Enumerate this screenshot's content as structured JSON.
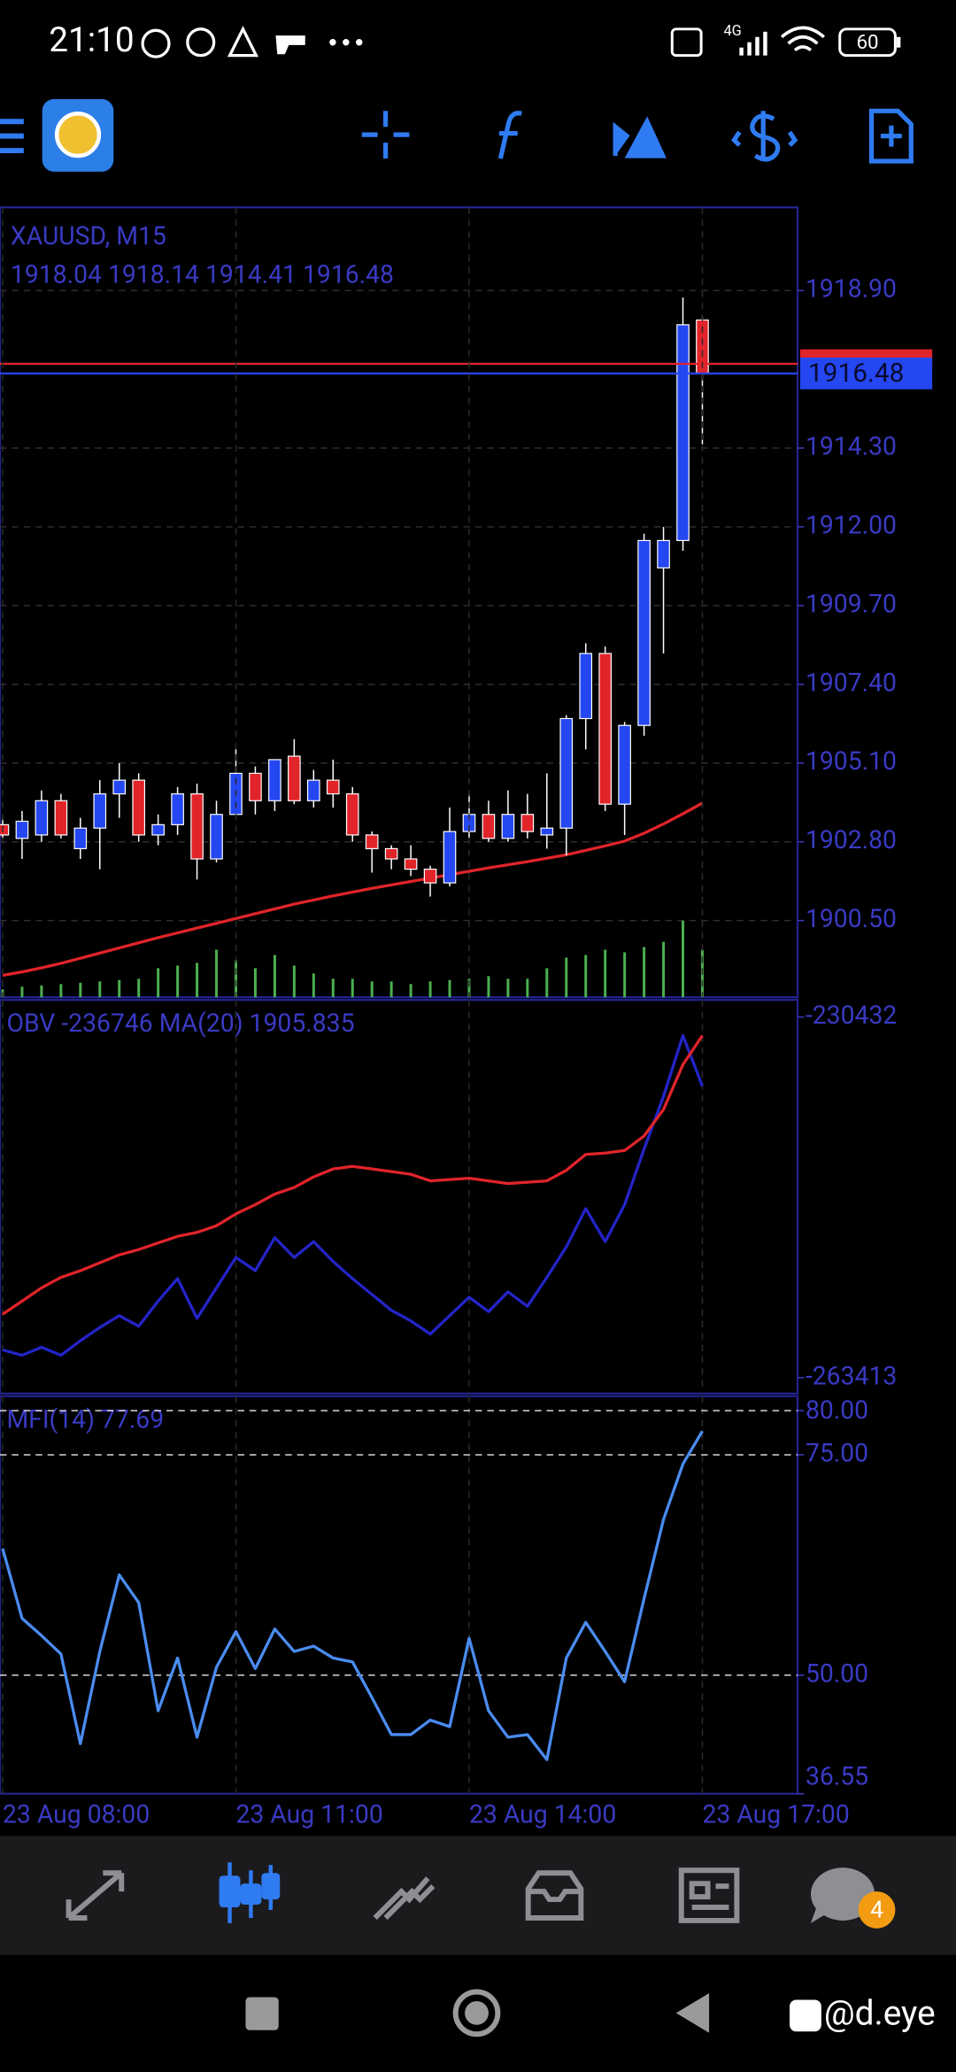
{
  "status_bar": {
    "time": "21:10",
    "network": "4G",
    "battery": "60"
  },
  "chart_data": [
    {
      "type": "candlestick",
      "title": "XAUUSD, M15",
      "subtitle": "1918.04 1918.14 1914.41 1916.48",
      "x": [
        "23 Aug 08:00",
        null,
        null,
        null,
        null,
        null,
        null,
        null,
        null,
        null,
        null,
        null,
        "23 Aug 11:00",
        null,
        null,
        null,
        null,
        null,
        null,
        null,
        null,
        null,
        null,
        null,
        "23 Aug 14:00",
        null,
        null,
        null,
        null,
        null,
        null,
        null,
        null,
        null,
        null,
        null,
        "23 Aug 17:00"
      ],
      "open": [
        1903.3,
        1902.9,
        1903.0,
        1904.0,
        1902.6,
        1903.2,
        1904.2,
        1904.6,
        1903.0,
        1903.3,
        1904.2,
        1902.3,
        1903.6,
        1904.8,
        1904.0,
        1905.3,
        1904.0,
        1904.6,
        1904.2,
        1903.0,
        1902.6,
        1902.3,
        1902.0,
        1901.6,
        1903.1,
        1903.6,
        1902.9,
        1903.6,
        1903.0,
        1903.2,
        1906.4,
        1908.3,
        1903.9,
        1906.2,
        1910.8,
        1911.6,
        1918.04
      ],
      "high": [
        1903.5,
        1903.7,
        1904.3,
        1904.2,
        1903.5,
        1904.6,
        1905.1,
        1904.8,
        1903.6,
        1904.4,
        1904.5,
        1904.0,
        1905.5,
        1905.0,
        1905.2,
        1905.8,
        1904.9,
        1905.2,
        1904.4,
        1903.1,
        1902.7,
        1902.7,
        1902.1,
        1903.8,
        1904.2,
        1904.0,
        1904.3,
        1904.2,
        1904.8,
        1906.5,
        1908.6,
        1908.5,
        1906.3,
        1911.8,
        1912.0,
        1918.7,
        1918.14
      ],
      "low": [
        1902.9,
        1902.3,
        1902.8,
        1902.9,
        1902.3,
        1902.0,
        1903.5,
        1902.8,
        1902.7,
        1903.0,
        1901.7,
        1902.2,
        1903.6,
        1903.6,
        1903.7,
        1903.9,
        1903.8,
        1903.8,
        1902.8,
        1901.9,
        1902.0,
        1901.8,
        1901.2,
        1901.5,
        1902.9,
        1902.8,
        1902.8,
        1902.9,
        1902.6,
        1902.4,
        1905.5,
        1903.7,
        1903.0,
        1905.9,
        1908.3,
        1911.3,
        1914.41
      ],
      "close": [
        1903.0,
        1903.4,
        1904.0,
        1903.0,
        1903.2,
        1904.2,
        1904.6,
        1903.0,
        1903.3,
        1904.2,
        1902.3,
        1903.6,
        1904.8,
        1904.0,
        1905.2,
        1904.0,
        1904.6,
        1904.2,
        1903.0,
        1902.6,
        1902.3,
        1902.0,
        1901.6,
        1903.1,
        1903.6,
        1902.9,
        1903.6,
        1903.1,
        1903.2,
        1906.4,
        1908.3,
        1903.9,
        1906.2,
        1911.6,
        1911.6,
        1917.9,
        1916.48
      ],
      "colors": {
        "up": "#2447f2",
        "down": "#e0242a",
        "wick": "#ffffff"
      },
      "moving_average": {
        "color": "#e0242a",
        "values": [
          1898.9,
          1899.0,
          1899.12,
          1899.25,
          1899.4,
          1899.55,
          1899.7,
          1899.85,
          1900.0,
          1900.14,
          1900.28,
          1900.42,
          1900.56,
          1900.7,
          1900.84,
          1900.98,
          1901.1,
          1901.22,
          1901.33,
          1901.44,
          1901.54,
          1901.64,
          1901.74,
          1901.84,
          1901.94,
          1902.04,
          1902.13,
          1902.22,
          1902.32,
          1902.42,
          1902.55,
          1902.68,
          1902.82,
          1903.05,
          1903.32,
          1903.62,
          1903.93
        ]
      },
      "volume": {
        "color": "#4caf50",
        "values": [
          6,
          8,
          9,
          10,
          11,
          12,
          13,
          14,
          22,
          24,
          26,
          36,
          28,
          22,
          32,
          24,
          18,
          14,
          14,
          12,
          12,
          10,
          12,
          13,
          14,
          16,
          14,
          14,
          22,
          30,
          32,
          36,
          34,
          38,
          42,
          58,
          36
        ]
      },
      "ask_line": {
        "value": 1916.76,
        "color": "#e0242a"
      },
      "ylim": [
        1898.26,
        1921.33
      ],
      "yticks": [
        {
          "value": 1918.9,
          "label": "1918.90"
        },
        {
          "value": 1914.3,
          "label": "1914.30"
        },
        {
          "value": 1912.0,
          "label": "1912.00"
        },
        {
          "value": 1909.7,
          "label": "1909.70"
        },
        {
          "value": 1907.4,
          "label": "1907.40"
        },
        {
          "value": 1905.1,
          "label": "1905.10"
        },
        {
          "value": 1902.8,
          "label": "1902.80"
        },
        {
          "value": 1900.5,
          "label": "1900.50"
        }
      ],
      "grid": true
    },
    {
      "type": "line",
      "title": "OBV -236746 MA(20) 1905.835",
      "series": [
        {
          "color": "#2424c8",
          "values": [
            -260879,
            -261362,
            -260637,
            -261362,
            -260033,
            -258825,
            -257737,
            -258704,
            -256408,
            -254354,
            -257979,
            -255200,
            -252421,
            -253629,
            -250609,
            -252421,
            -250971,
            -252784,
            -254354,
            -255804,
            -257254,
            -258221,
            -259429,
            -257737,
            -256046,
            -257375,
            -255563,
            -256892,
            -254234,
            -251455,
            -247951,
            -250971,
            -247588,
            -242514,
            -237681,
            -232123,
            -236746
          ]
        },
        {
          "color": "#e0242a",
          "values": [
            -257617,
            -256408,
            -255200,
            -254234,
            -253629,
            -252905,
            -252180,
            -251696,
            -251092,
            -250488,
            -250126,
            -249522,
            -248434,
            -247588,
            -246622,
            -246018,
            -245051,
            -244326,
            -244085,
            -244326,
            -244568,
            -244810,
            -245414,
            -245293,
            -245172,
            -245414,
            -245655,
            -245534,
            -245414,
            -244447,
            -242997,
            -242876,
            -242635,
            -241306,
            -238889,
            -234782,
            -232123
          ]
        }
      ],
      "ylim": [
        -264863,
        -228861
      ],
      "yticks": [
        -263413,
        -230432
      ]
    },
    {
      "type": "line",
      "title": "MFI(14) 77.69",
      "series": [
        {
          "color": "#4a8cf0",
          "values": [
            64.37,
            56.44,
            54.49,
            52.4,
            42.22,
            52.69,
            61.38,
            58.23,
            45.96,
            51.95,
            42.96,
            50.9,
            54.94,
            50.75,
            55.24,
            52.69,
            53.29,
            51.95,
            51.5,
            47.46,
            43.26,
            43.26,
            44.91,
            44.16,
            54.19,
            45.96,
            42.96,
            43.26,
            40.42,
            51.95,
            55.99,
            52.69,
            49.25,
            58.68,
            67.66,
            73.95,
            77.69
          ]
        }
      ],
      "ylim": [
        36.55,
        81.65
      ],
      "yticks": [
        {
          "value": 80,
          "label": "80.00"
        },
        {
          "value": 75,
          "label": "75.00"
        },
        {
          "value": 50,
          "label": "50.00"
        },
        36.55
      ]
    }
  ],
  "chat_badge": "4",
  "watermark": "@d.eye"
}
